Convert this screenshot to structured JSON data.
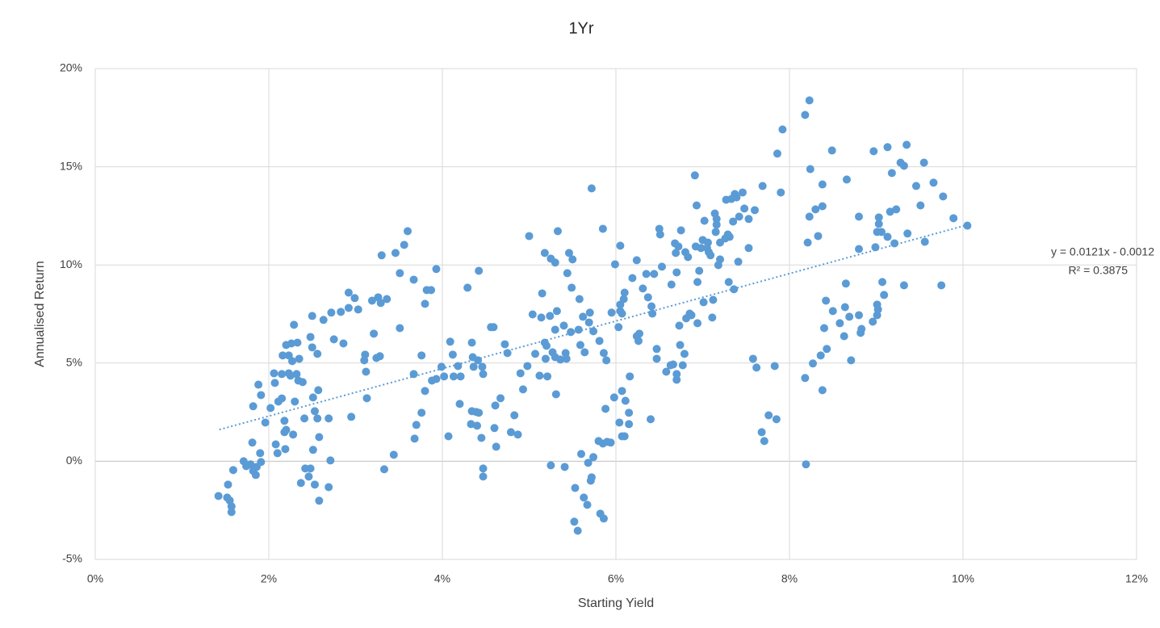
{
  "chart_data": {
    "type": "scatter",
    "title": "1Yr",
    "x_label": "Starting Yield",
    "y_label": "Annualised Return",
    "color": "#5b9bd5",
    "grid": true,
    "xlim": [
      0,
      12
    ],
    "ylim": [
      -5,
      20
    ],
    "xticks": [
      {
        "value": 0,
        "label": "0%"
      },
      {
        "value": 2,
        "label": "2%"
      },
      {
        "value": 4,
        "label": "4%"
      },
      {
        "value": 6,
        "label": "6%"
      },
      {
        "value": 8,
        "label": "8%"
      },
      {
        "value": 10,
        "label": "10%"
      },
      {
        "value": 12,
        "label": "12%"
      }
    ],
    "yticks": [
      {
        "value": -5,
        "label": "-5%"
      },
      {
        "value": 0,
        "label": "0%"
      },
      {
        "value": 5,
        "label": "5%"
      },
      {
        "value": 10,
        "label": "10%"
      },
      {
        "value": 15,
        "label": "15%"
      },
      {
        "value": 20,
        "label": "20%"
      }
    ],
    "x": [
      1.42,
      1.52,
      1.53,
      1.55,
      1.57,
      1.57,
      1.59,
      1.71,
      1.74,
      1.79,
      1.82,
      1.85,
      1.86,
      1.81,
      1.82,
      1.88,
      1.91,
      1.9,
      1.91,
      1.96,
      2.02,
      2.06,
      2.07,
      2.08,
      2.1,
      2.11,
      2.15,
      2.15,
      2.16,
      2.18,
      2.18,
      2.19,
      2.2,
      2.2,
      2.23,
      2.23,
      2.25,
      2.26,
      2.27,
      2.28,
      2.29,
      2.3,
      2.32,
      2.33,
      2.34,
      2.35,
      2.37,
      2.39,
      2.41,
      2.42,
      2.46,
      2.48,
      2.48,
      2.5,
      2.5,
      2.51,
      2.51,
      2.53,
      2.53,
      2.56,
      2.56,
      2.57,
      2.58,
      2.58,
      2.63,
      2.69,
      2.69,
      2.71,
      2.72,
      2.75,
      2.83,
      2.86,
      2.92,
      2.92,
      2.95,
      2.99,
      3.03,
      3.1,
      3.11,
      3.12,
      3.13,
      3.19,
      3.21,
      3.24,
      3.26,
      3.28,
      3.29,
      3.3,
      3.33,
      3.36,
      3.44,
      3.46,
      3.51,
      3.51,
      3.56,
      3.6,
      3.67,
      3.67,
      3.68,
      3.7,
      3.76,
      3.76,
      3.8,
      3.8,
      3.82,
      3.87,
      3.88,
      3.93,
      3.93,
      3.99,
      4.02,
      4.07,
      4.09,
      4.12,
      4.13,
      4.18,
      4.2,
      4.21,
      4.29,
      4.33,
      4.34,
      4.34,
      4.35,
      4.36,
      4.4,
      4.39,
      4.41,
      4.42,
      4.42,
      4.45,
      4.46,
      4.47,
      4.47,
      4.47,
      4.56,
      4.59,
      4.6,
      4.61,
      4.62,
      4.67,
      4.72,
      4.75,
      4.79,
      4.83,
      4.87,
      4.9,
      4.93,
      4.98,
      5.0,
      5.04,
      5.07,
      5.12,
      5.14,
      5.15,
      5.18,
      5.18,
      5.19,
      5.2,
      5.21,
      5.24,
      5.25,
      5.25,
      5.27,
      5.3,
      5.3,
      5.3,
      5.31,
      5.32,
      5.33,
      5.36,
      5.4,
      5.41,
      5.42,
      5.43,
      5.44,
      5.46,
      5.48,
      5.49,
      5.5,
      5.52,
      5.53,
      5.56,
      5.57,
      5.58,
      5.59,
      5.6,
      5.62,
      5.63,
      5.64,
      5.67,
      5.68,
      5.69,
      5.7,
      5.71,
      5.72,
      5.72,
      5.74,
      5.74,
      5.8,
      5.81,
      5.82,
      5.85,
      5.85,
      5.86,
      5.86,
      5.88,
      5.89,
      5.9,
      5.94,
      5.95,
      5.98,
      5.99,
      6.03,
      6.04,
      6.05,
      6.05,
      6.05,
      6.07,
      6.07,
      6.07,
      6.1,
      6.11,
      6.09,
      6.1,
      6.15,
      6.15,
      6.16,
      6.19,
      6.24,
      6.24,
      6.26,
      6.27,
      6.31,
      6.35,
      6.37,
      6.4,
      6.41,
      6.42,
      6.44,
      6.47,
      6.47,
      6.5,
      6.51,
      6.53,
      6.58,
      6.63,
      6.64,
      6.66,
      6.68,
      6.69,
      6.7,
      6.7,
      6.7,
      6.72,
      6.73,
      6.74,
      6.75,
      6.77,
      6.79,
      6.8,
      6.81,
      6.83,
      6.85,
      6.87,
      6.91,
      6.92,
      6.93,
      6.94,
      6.94,
      6.96,
      6.98,
      7.0,
      7.01,
      7.02,
      7.05,
      7.06,
      7.07,
      7.09,
      7.11,
      7.12,
      7.14,
      7.15,
      7.16,
      7.16,
      7.18,
      7.2,
      7.2,
      7.26,
      7.27,
      7.29,
      7.3,
      7.31,
      7.33,
      7.35,
      7.36,
      7.37,
      7.39,
      7.41,
      7.42,
      7.46,
      7.48,
      7.53,
      7.53,
      7.58,
      7.6,
      7.62,
      7.68,
      7.69,
      7.71,
      7.76,
      7.83,
      7.85,
      7.86,
      7.9,
      7.92,
      8.18,
      8.18,
      8.19,
      8.21,
      8.23,
      8.23,
      8.24,
      8.27,
      8.3,
      8.33,
      8.36,
      8.38,
      8.38,
      8.38,
      8.4,
      8.42,
      8.43,
      8.49,
      8.5,
      8.58,
      8.63,
      8.64,
      8.65,
      8.66,
      8.69,
      8.71,
      8.8,
      8.8,
      8.8,
      8.82,
      8.83,
      8.96,
      8.97,
      8.99,
      9.01,
      9.01,
      9.01,
      9.02,
      9.03,
      9.03,
      9.06,
      9.07,
      9.09,
      9.13,
      9.13,
      9.16,
      9.18,
      9.21,
      9.23,
      9.28,
      9.32,
      9.32,
      9.35,
      9.36,
      9.46,
      9.51,
      9.55,
      9.56,
      9.66,
      9.75,
      9.77,
      9.89,
      10.05
    ],
    "values": [
      -1.77,
      -1.85,
      -1.19,
      -2.0,
      -2.3,
      -2.59,
      -0.45,
      0.0,
      -0.25,
      -0.16,
      -0.49,
      -0.7,
      -0.29,
      0.95,
      2.8,
      3.9,
      3.37,
      0.41,
      -0.04,
      1.97,
      2.71,
      4.48,
      3.99,
      0.86,
      0.41,
      3.04,
      3.2,
      4.44,
      5.39,
      1.48,
      2.06,
      0.62,
      5.92,
      1.6,
      4.48,
      5.39,
      4.36,
      6.0,
      5.1,
      1.36,
      6.95,
      3.04,
      4.44,
      6.04,
      4.11,
      5.22,
      -1.11,
      4.03,
      2.18,
      -0.37,
      -0.78,
      6.33,
      -0.37,
      7.4,
      5.8,
      0.58,
      3.25,
      2.55,
      -1.19,
      5.47,
      2.18,
      3.62,
      1.23,
      -2.01,
      7.2,
      2.18,
      -1.32,
      0.04,
      7.57,
      6.21,
      7.61,
      6.0,
      8.59,
      7.81,
      2.26,
      8.31,
      7.73,
      5.14,
      5.43,
      4.56,
      3.21,
      8.18,
      6.5,
      5.26,
      8.35,
      5.35,
      8.06,
      10.49,
      -0.41,
      8.26,
      0.33,
      10.61,
      9.58,
      6.78,
      11.02,
      11.72,
      4.44,
      9.25,
      1.15,
      1.85,
      5.39,
      2.47,
      3.58,
      8.02,
      8.72,
      8.72,
      4.11,
      9.79,
      4.19,
      4.81,
      4.32,
      1.27,
      6.09,
      5.43,
      4.32,
      4.85,
      2.92,
      4.32,
      8.84,
      1.89,
      2.55,
      6.04,
      5.3,
      4.81,
      1.81,
      2.51,
      5.14,
      2.47,
      9.7,
      1.19,
      4.81,
      -0.78,
      -0.37,
      4.44,
      6.83,
      6.83,
      1.69,
      2.84,
      0.74,
      3.21,
      5.96,
      5.51,
      1.48,
      2.34,
      1.36,
      4.48,
      3.66,
      4.85,
      11.47,
      7.48,
      5.47,
      4.36,
      7.32,
      8.55,
      10.61,
      6.04,
      5.22,
      5.88,
      4.32,
      7.4,
      -0.21,
      10.32,
      5.55,
      10.12,
      6.7,
      5.3,
      3.41,
      7.65,
      11.72,
      5.18,
      6.91,
      -0.29,
      5.51,
      5.22,
      9.58,
      10.61,
      6.58,
      8.84,
      10.28,
      -3.08,
      -1.36,
      -3.54,
      6.7,
      8.26,
      5.92,
      0.37,
      7.36,
      -1.85,
      5.55,
      -2.22,
      -0.08,
      7.07,
      7.57,
      -0.99,
      13.9,
      -0.82,
      6.62,
      0.21,
      1.03,
      6.13,
      -2.67,
      0.9,
      11.84,
      -2.92,
      5.51,
      2.67,
      5.14,
      0.99,
      0.95,
      7.57,
      3.25,
      10.03,
      6.83,
      1.97,
      7.98,
      10.98,
      7.65,
      7.52,
      3.58,
      1.27,
      1.27,
      3.08,
      8.26,
      8.59,
      2.47,
      1.89,
      4.32,
      9.33,
      10.24,
      6.37,
      6.13,
      6.5,
      8.8,
      9.54,
      8.35,
      2.14,
      7.89,
      7.52,
      9.54,
      5.22,
      5.72,
      11.84,
      11.55,
      9.91,
      4.56,
      4.89,
      9.0,
      4.93,
      11.1,
      10.61,
      9.62,
      4.44,
      4.15,
      10.94,
      6.91,
      5.92,
      11.76,
      4.89,
      5.47,
      10.65,
      7.28,
      10.4,
      7.52,
      7.44,
      14.56,
      10.94,
      13.03,
      9.13,
      7.03,
      9.7,
      10.86,
      11.27,
      8.1,
      12.25,
      10.86,
      11.14,
      10.65,
      10.49,
      7.32,
      8.22,
      12.62,
      11.68,
      12.05,
      12.34,
      9.99,
      11.14,
      10.28,
      11.35,
      13.32,
      11.55,
      9.13,
      11.43,
      13.36,
      12.21,
      8.76,
      13.61,
      13.44,
      10.16,
      12.46,
      13.69,
      12.87,
      12.34,
      10.86,
      5.22,
      12.79,
      4.77,
      1.48,
      14.02,
      1.03,
      2.34,
      4.85,
      2.14,
      15.67,
      13.69,
      16.9,
      17.64,
      4.24,
      -0.16,
      11.14,
      18.38,
      12.46,
      14.88,
      4.98,
      12.83,
      11.47,
      5.39,
      12.99,
      14.1,
      3.62,
      6.78,
      8.18,
      5.72,
      15.83,
      7.65,
      7.03,
      6.37,
      7.85,
      9.05,
      14.35,
      7.36,
      5.14,
      10.81,
      12.46,
      7.44,
      6.54,
      6.74,
      7.11,
      15.79,
      10.9,
      11.68,
      7.98,
      7.44,
      7.73,
      12.42,
      12.09,
      11.68,
      9.13,
      8.47,
      11.43,
      16.0,
      12.71,
      14.68,
      11.1,
      12.83,
      15.21,
      15.05,
      8.96,
      16.12,
      11.6,
      14.02,
      13.03,
      15.21,
      11.18,
      14.19,
      8.96,
      13.49,
      12.38,
      12.0
    ],
    "trendline": {
      "equation": "y = 0.0121x - 0.0012",
      "r_squared": "R² = 0.3875",
      "color": "#5b9bd5",
      "x": [
        1.43,
        10.05
      ],
      "values": [
        1.61,
        12.04
      ]
    }
  }
}
